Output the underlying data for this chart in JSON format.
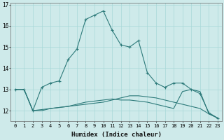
{
  "xlabel": "Humidex (Indice chaleur)",
  "background_color": "#ceeaea",
  "grid_color": "#a8d8d8",
  "line_color": "#2d7a7a",
  "x_values": [
    0,
    1,
    2,
    3,
    4,
    5,
    6,
    7,
    8,
    9,
    10,
    11,
    12,
    13,
    14,
    15,
    16,
    17,
    18,
    19,
    20,
    21,
    22,
    23
  ],
  "curve1": [
    13.0,
    13.0,
    12.0,
    13.1,
    13.3,
    13.4,
    14.4,
    14.9,
    16.3,
    16.5,
    16.7,
    15.8,
    15.1,
    15.0,
    15.3,
    13.8,
    13.3,
    13.1,
    13.3,
    13.3,
    13.0,
    12.8,
    11.9,
    11.65
  ],
  "curve2": [
    13.0,
    13.0,
    12.0,
    12.05,
    12.1,
    12.15,
    12.2,
    12.3,
    12.4,
    12.45,
    12.5,
    12.55,
    12.5,
    12.5,
    12.45,
    12.4,
    12.3,
    12.2,
    12.1,
    12.9,
    13.0,
    12.9,
    11.85,
    11.65
  ],
  "curve3": [
    13.0,
    13.0,
    12.0,
    12.0,
    12.1,
    12.15,
    12.2,
    12.25,
    12.3,
    12.35,
    12.4,
    12.5,
    12.6,
    12.7,
    12.7,
    12.65,
    12.6,
    12.5,
    12.4,
    12.3,
    12.2,
    12.1,
    11.85,
    11.65
  ],
  "ylim": [
    11.5,
    17.1
  ],
  "yticks": [
    12,
    13,
    14,
    15,
    16,
    17
  ],
  "xlim": [
    -0.5,
    23.5
  ]
}
